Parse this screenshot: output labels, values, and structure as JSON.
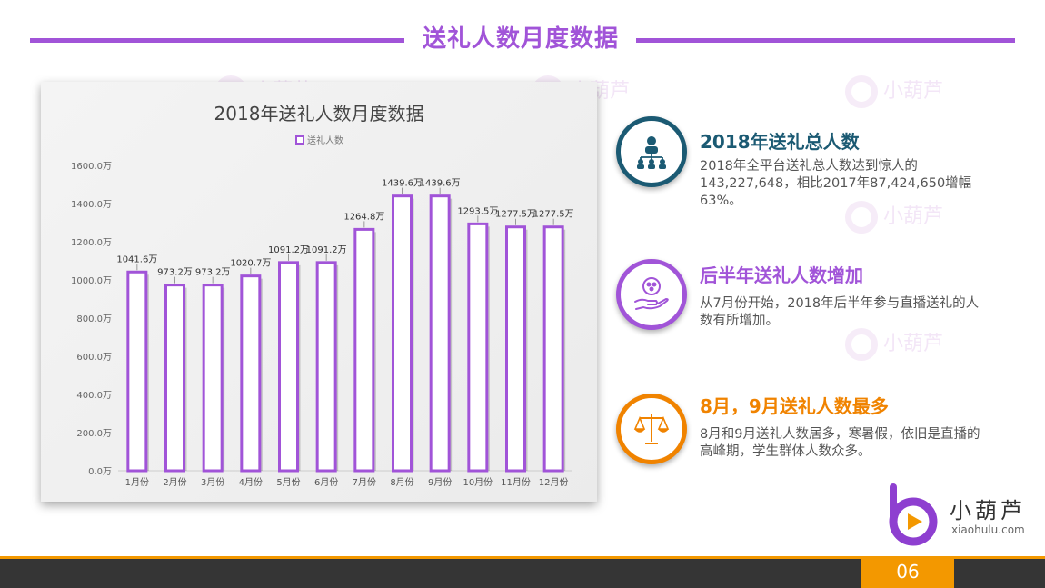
{
  "header": {
    "title": "送礼人数月度数据"
  },
  "chart_data": {
    "type": "bar",
    "title": "2018年送礼人数月度数据",
    "legend": [
      "送礼人数"
    ],
    "legend_position": "top",
    "categories": [
      "1月份",
      "2月份",
      "3月份",
      "4月份",
      "5月份",
      "6月份",
      "7月份",
      "8月份",
      "9月份",
      "10月份",
      "11月份",
      "12月份"
    ],
    "series": [
      {
        "name": "送礼人数",
        "values": [
          1041.6,
          973.2,
          973.2,
          1020.7,
          1091.2,
          1091.2,
          1264.8,
          1439.6,
          1439.6,
          1293.5,
          1277.5,
          1277.5
        ]
      }
    ],
    "value_labels": [
      "1041.6万",
      "973.2万",
      "973.2万",
      "1020.7万",
      "1091.2万",
      "1091.2万",
      "1264.8万",
      "1439.6万",
      "1439.6万",
      "1293.5万",
      "1277.5万",
      "1277.5万"
    ],
    "y_ticks": [
      "0.0万",
      "200.0万",
      "400.0万",
      "600.0万",
      "800.0万",
      "1000.0万",
      "1200.0万",
      "1400.0万",
      "1600.0万"
    ],
    "ylim": [
      0,
      1600
    ],
    "grid": false,
    "colors": {
      "bar_stroke": "#a154d8",
      "bar_fill": "#ffffff"
    }
  },
  "info_blocks": [
    {
      "heading": "2018年送礼总人数",
      "body": "2018年全平台送礼总人数达到惊人的143,227,648，相比2017年87,424,650增幅63%。",
      "color": "#1b5a73",
      "icon": "team-hierarchy-icon"
    },
    {
      "heading": "后半年送礼人数增加",
      "body": "从7月份开始，2018年后半年参与直播送礼的人数有所增加。",
      "color": "#a154d8",
      "icon": "hand-giving-icon"
    },
    {
      "heading": "8月，9月送礼人数最多",
      "body": "8月和9月送礼人数居多，寒暑假，依旧是直播的高峰期，学生群体人数众多。",
      "color": "#f08300",
      "icon": "scale-balance-icon"
    }
  ],
  "logo": {
    "name": "小葫芦",
    "url": "xiaohulu.com",
    "watermark": "小葫芦"
  },
  "footer": {
    "page": "06"
  }
}
